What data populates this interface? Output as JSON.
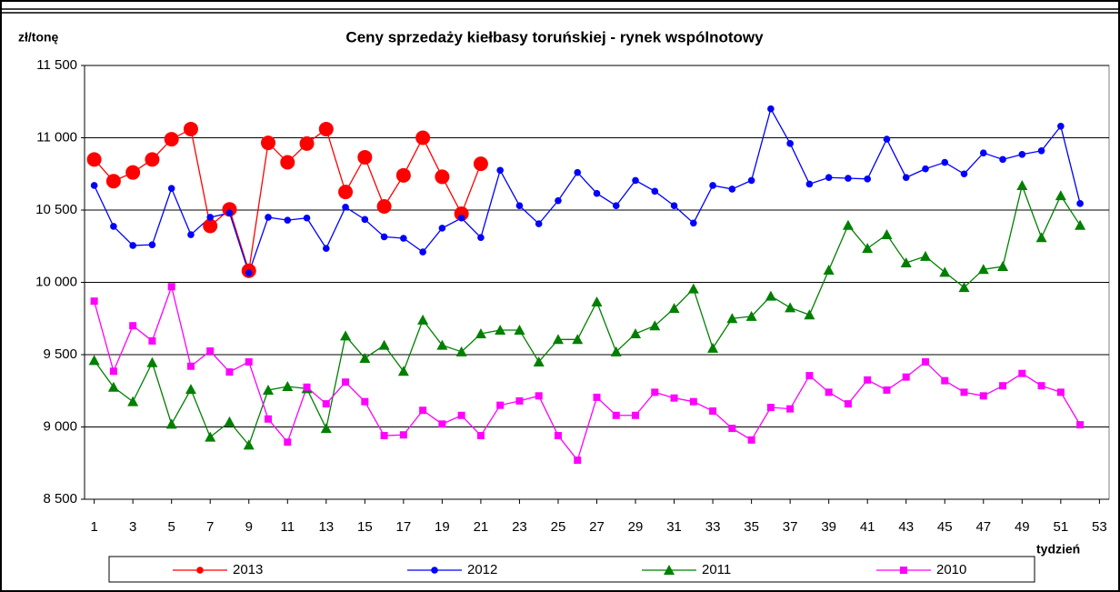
{
  "chart_data": {
    "type": "line",
    "title": "Ceny sprzedaży kiełbasy toruńskiej - rynek wspólnotowy",
    "y_label": "zł/tonę",
    "x_label": "tydzień",
    "x": [
      1,
      2,
      3,
      4,
      5,
      6,
      7,
      8,
      9,
      10,
      11,
      12,
      13,
      14,
      15,
      16,
      17,
      18,
      19,
      20,
      21,
      22,
      23,
      24,
      25,
      26,
      27,
      28,
      29,
      30,
      31,
      32,
      33,
      34,
      35,
      36,
      37,
      38,
      39,
      40,
      41,
      42,
      43,
      44,
      45,
      46,
      47,
      48,
      49,
      50,
      51,
      52
    ],
    "xlim": [
      0.5,
      53.5
    ],
    "xticks": [
      1,
      3,
      5,
      7,
      9,
      11,
      13,
      15,
      17,
      19,
      21,
      23,
      25,
      27,
      29,
      31,
      33,
      35,
      37,
      39,
      41,
      43,
      45,
      47,
      49,
      51,
      53
    ],
    "ylim": [
      8500,
      11500
    ],
    "yticks": [
      {
        "value": 8500,
        "label": "8 500"
      },
      {
        "value": 9000,
        "label": "9 000"
      },
      {
        "value": 9500,
        "label": "9 500"
      },
      {
        "value": 10000,
        "label": "10 000"
      },
      {
        "value": 10500,
        "label": "10 500"
      },
      {
        "value": 11000,
        "label": "11 000"
      },
      {
        "value": 11500,
        "label": "11 500"
      }
    ],
    "grid": true,
    "legend": "bottom",
    "series": [
      {
        "name": "2013",
        "color": "#ff0000",
        "marker": "circle-large",
        "values": [
          10850,
          10700,
          10760,
          10850,
          10990,
          11060,
          10390,
          10505,
          10080,
          10965,
          10830,
          10960,
          11060,
          10625,
          10865,
          10525,
          10740,
          11000,
          10730,
          10475,
          10820,
          null,
          null,
          null,
          null,
          null,
          null,
          null,
          null,
          null,
          null,
          null,
          null,
          null,
          null,
          null,
          null,
          null,
          null,
          null,
          null,
          null,
          null,
          null,
          null,
          null,
          null,
          null,
          null,
          null,
          null,
          null
        ]
      },
      {
        "name": "2012",
        "color": "#0000ff",
        "marker": "circle",
        "values": [
          10670,
          10387,
          10255,
          10260,
          10650,
          10330,
          10450,
          10480,
          10065,
          10450,
          10430,
          10445,
          10235,
          10520,
          10435,
          10315,
          10305,
          10210,
          10375,
          10445,
          10310,
          10775,
          10530,
          10405,
          10565,
          10760,
          10615,
          10530,
          10705,
          10630,
          10530,
          10410,
          10670,
          10645,
          10705,
          11200,
          10960,
          10680,
          10725,
          10720,
          10715,
          10990,
          10725,
          10785,
          10830,
          10750,
          10895,
          10850,
          10885,
          10910,
          11080,
          10545
        ]
      },
      {
        "name": "2011",
        "color": "#008000",
        "marker": "triangle",
        "values": [
          9460,
          9275,
          9175,
          9445,
          9020,
          9260,
          8930,
          9035,
          8875,
          9255,
          9280,
          9265,
          8990,
          9630,
          9475,
          9565,
          9385,
          9740,
          9565,
          9520,
          9645,
          9670,
          9670,
          9450,
          9605,
          9605,
          9865,
          9520,
          9645,
          9700,
          9820,
          9955,
          9545,
          9750,
          9765,
          9905,
          9825,
          9775,
          10085,
          10395,
          10235,
          10330,
          10135,
          10180,
          10070,
          9965,
          10090,
          10110,
          10670,
          10310,
          10600,
          10395
        ]
      },
      {
        "name": "2010",
        "color": "#ff00ff",
        "marker": "square",
        "values": [
          9870,
          9385,
          9700,
          9595,
          9970,
          9420,
          9525,
          9380,
          9450,
          9055,
          8895,
          9275,
          9160,
          9310,
          9175,
          8940,
          8945,
          9115,
          9020,
          9080,
          8940,
          9150,
          9180,
          9215,
          8940,
          8770,
          9205,
          9080,
          9080,
          9240,
          9200,
          9175,
          9110,
          8990,
          8910,
          9135,
          9125,
          9355,
          9240,
          9160,
          9325,
          9255,
          9345,
          9450,
          9320,
          9240,
          9215,
          9285,
          9370,
          9285,
          9240,
          9015
        ]
      }
    ]
  }
}
